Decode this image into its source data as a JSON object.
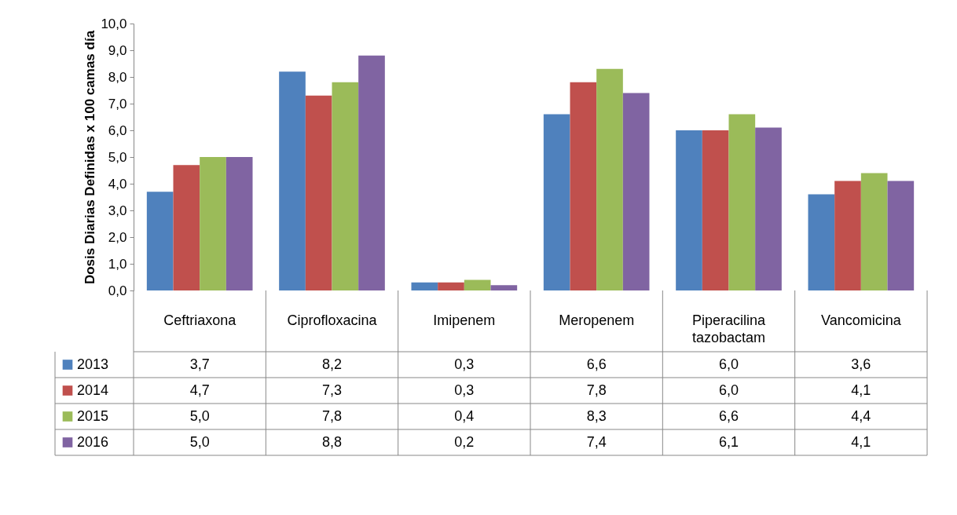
{
  "chart_data": {
    "type": "bar",
    "ylabel": "Dosis Diarias Definidas x 100 camas día",
    "categories": [
      "Ceftriaxona",
      "Ciprofloxacina",
      "Imipenem",
      "Meropenem",
      "Piperacilina tazobactam",
      "Vancomicina"
    ],
    "series": [
      {
        "name": "2013",
        "color": "#4f81bd",
        "values": [
          3.7,
          8.2,
          0.3,
          6.6,
          6.0,
          3.6
        ],
        "value_labels": [
          "3,7",
          "8,2",
          "0,3",
          "6,6",
          "6,0",
          "3,6"
        ]
      },
      {
        "name": "2014",
        "color": "#c0504d",
        "values": [
          4.7,
          7.3,
          0.3,
          7.8,
          6.0,
          4.1
        ],
        "value_labels": [
          "4,7",
          "7,3",
          "0,3",
          "7,8",
          "6,0",
          "4,1"
        ]
      },
      {
        "name": "2015",
        "color": "#9bbb59",
        "values": [
          5.0,
          7.8,
          0.4,
          8.3,
          6.6,
          4.4
        ],
        "value_labels": [
          "5,0",
          "7,8",
          "0,4",
          "8,3",
          "6,6",
          "4,4"
        ]
      },
      {
        "name": "2016",
        "color": "#8064a2",
        "values": [
          5.0,
          8.8,
          0.2,
          7.4,
          6.1,
          4.1
        ],
        "value_labels": [
          "5,0",
          "8,8",
          "0,2",
          "7,4",
          "6,1",
          "4,1"
        ]
      }
    ],
    "ylim": [
      0,
      10
    ],
    "yticks": [
      {
        "value": 0,
        "label": "0,0"
      },
      {
        "value": 1,
        "label": "1,0"
      },
      {
        "value": 2,
        "label": "2,0"
      },
      {
        "value": 3,
        "label": "3,0"
      },
      {
        "value": 4,
        "label": "4,0"
      },
      {
        "value": 5,
        "label": "5,0"
      },
      {
        "value": 6,
        "label": "6,0"
      },
      {
        "value": 7,
        "label": "7,0"
      },
      {
        "value": 8,
        "label": "8,0"
      },
      {
        "value": 9,
        "label": "9,0"
      },
      {
        "value": 10,
        "label": "10,0"
      }
    ],
    "grid": false,
    "legend": "bottom"
  }
}
